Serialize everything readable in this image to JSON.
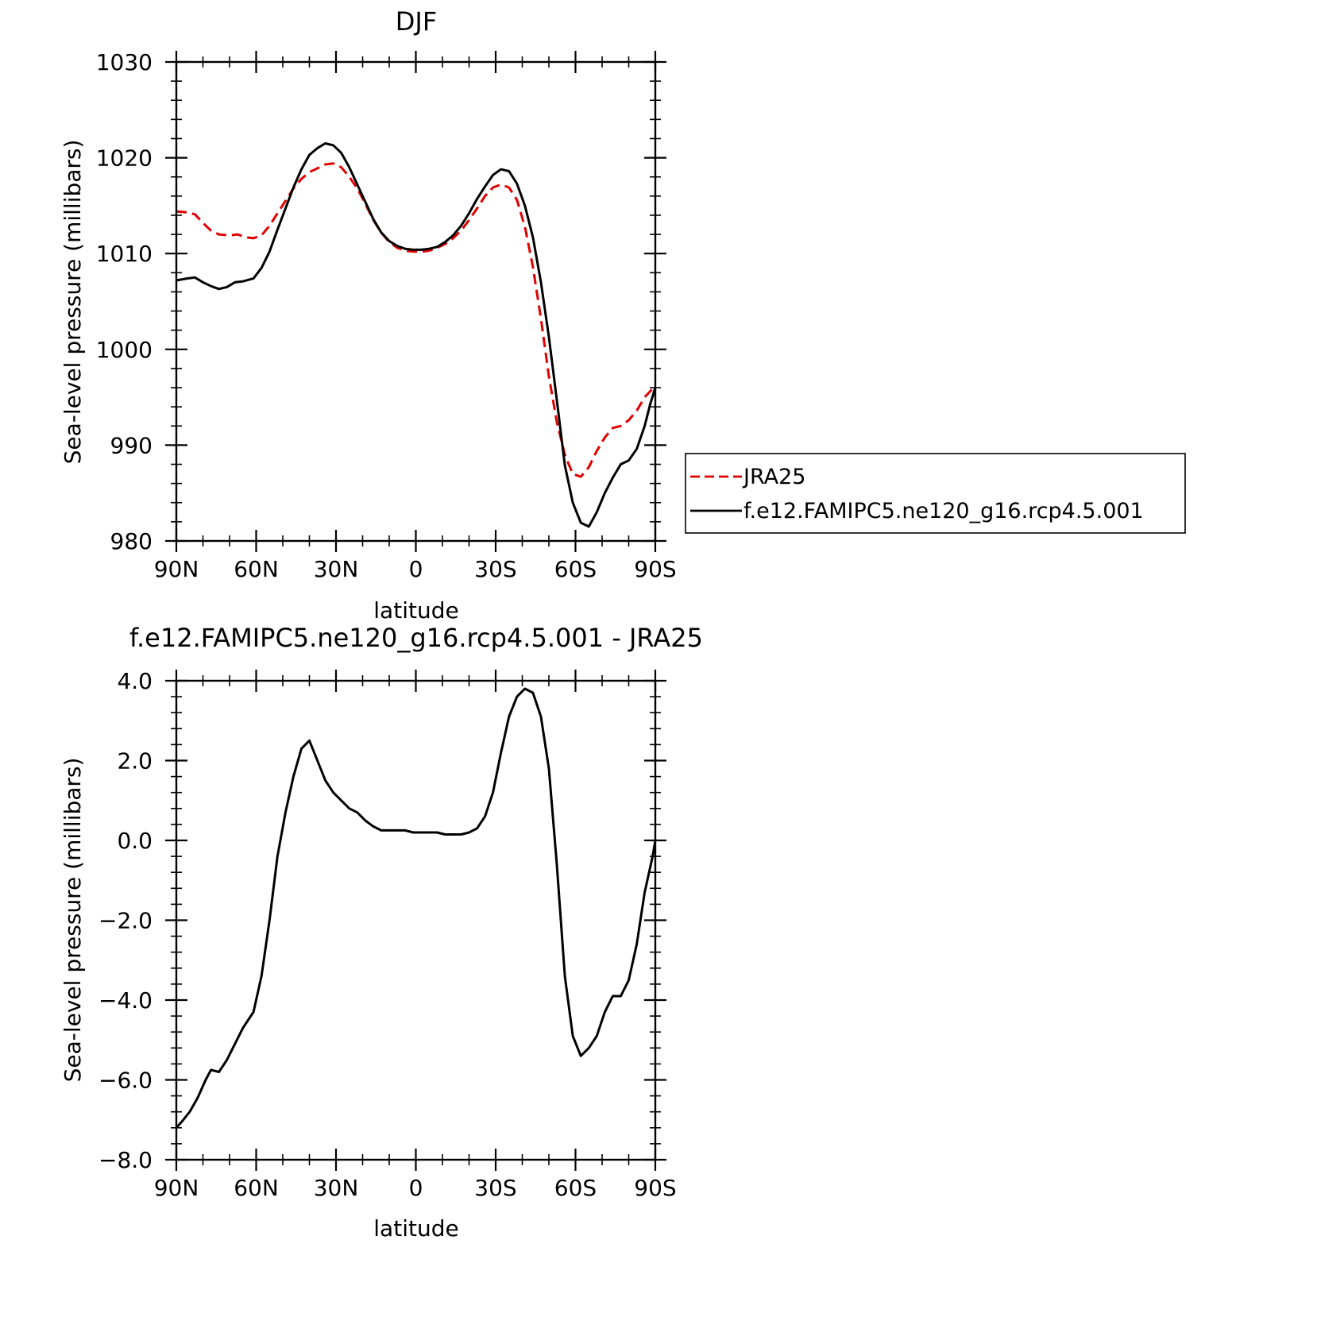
{
  "chart_data": [
    {
      "type": "line",
      "title": "DJF",
      "xlabel": "latitude",
      "ylabel": "Sea-level pressure (millibars)",
      "xlim": [
        90,
        -90
      ],
      "ylim": [
        980,
        1030
      ],
      "x_ticks": [
        90,
        60,
        30,
        0,
        -30,
        -60,
        -90
      ],
      "x_tick_labels": [
        "90N",
        "60N",
        "30N",
        "0",
        "30S",
        "60S",
        "90S"
      ],
      "y_ticks": [
        980,
        990,
        1000,
        1010,
        1020,
        1030
      ],
      "y_tick_labels": [
        "980",
        "990",
        "1000",
        "1010",
        "1020",
        "1030"
      ],
      "legend_position": "right",
      "series": [
        {
          "name": "JRA25",
          "color": "#e00000",
          "dash": true,
          "x": [
            90,
            86,
            83,
            80,
            77,
            74,
            70,
            67,
            64,
            61,
            58,
            55,
            52,
            49,
            46,
            43,
            40,
            37,
            34,
            31,
            28,
            25,
            22,
            19,
            16,
            13,
            10,
            7,
            4,
            1,
            -2,
            -5,
            -8,
            -11,
            -14,
            -17,
            -20,
            -23,
            -26,
            -29,
            -32,
            -35,
            -38,
            -41,
            -44,
            -47,
            -50,
            -53,
            -56,
            -59,
            -62,
            -65,
            -68,
            -71,
            -74,
            -77,
            -80,
            -83,
            -86,
            -90
          ],
          "values": [
            1014.4,
            1014.3,
            1014.1,
            1013.2,
            1012.4,
            1012.0,
            1011.9,
            1012.0,
            1011.7,
            1011.6,
            1011.9,
            1012.9,
            1014.2,
            1015.5,
            1016.8,
            1017.8,
            1018.5,
            1018.9,
            1019.3,
            1019.4,
            1019.0,
            1018.0,
            1016.8,
            1015.2,
            1013.5,
            1012.2,
            1011.2,
            1010.6,
            1010.3,
            1010.2,
            1010.2,
            1010.3,
            1010.6,
            1011.0,
            1011.6,
            1012.4,
            1013.5,
            1014.7,
            1016.0,
            1016.9,
            1017.2,
            1016.9,
            1015.6,
            1012.8,
            1008.6,
            1003.2,
            997.2,
            992.4,
            989.0,
            987.0,
            986.7,
            987.7,
            989.4,
            990.8,
            991.8,
            992.0,
            992.6,
            993.6,
            995.0,
            996.2
          ]
        },
        {
          "name": "f.e12.FAMIPC5.ne120_g16.rcp4.5.001",
          "color": "#000000",
          "dash": false,
          "x": [
            90,
            86,
            83,
            80,
            77,
            74,
            71,
            68,
            65,
            61,
            58,
            55,
            52,
            49,
            46,
            43,
            40,
            37,
            34,
            31,
            28,
            25,
            22,
            19,
            16,
            13,
            10,
            7,
            4,
            1,
            -2,
            -5,
            -8,
            -11,
            -14,
            -17,
            -20,
            -23,
            -26,
            -29,
            -32,
            -35,
            -38,
            -41,
            -44,
            -47,
            -50,
            -53,
            -56,
            -59,
            -62,
            -65,
            -68,
            -71,
            -74,
            -77,
            -80,
            -83,
            -86,
            -88,
            -90
          ],
          "values": [
            1007.2,
            1007.4,
            1007.5,
            1007.0,
            1006.6,
            1006.3,
            1006.5,
            1007.0,
            1007.1,
            1007.4,
            1008.5,
            1010.2,
            1012.5,
            1014.7,
            1016.9,
            1018.8,
            1020.3,
            1021.0,
            1021.5,
            1021.3,
            1020.5,
            1019.0,
            1017.2,
            1015.4,
            1013.6,
            1012.2,
            1011.3,
            1010.8,
            1010.5,
            1010.4,
            1010.4,
            1010.5,
            1010.7,
            1011.2,
            1011.9,
            1012.9,
            1014.2,
            1015.7,
            1017.0,
            1018.2,
            1018.8,
            1018.6,
            1017.3,
            1015.0,
            1011.7,
            1007.0,
            1001.3,
            994.7,
            987.9,
            984.0,
            981.9,
            981.5,
            983.0,
            985.0,
            986.6,
            988.0,
            988.4,
            989.6,
            992.0,
            994.2,
            996.0
          ]
        }
      ]
    },
    {
      "type": "line",
      "title": "f.e12.FAMIPC5.ne120_g16.rcp4.5.001 - JRA25",
      "xlabel": "latitude",
      "ylabel": "Sea-level pressure (millibars)",
      "xlim": [
        90,
        -90
      ],
      "ylim": [
        -8,
        4
      ],
      "x_ticks": [
        90,
        60,
        30,
        0,
        -30,
        -60,
        -90
      ],
      "x_tick_labels": [
        "90N",
        "60N",
        "30N",
        "0",
        "30S",
        "60S",
        "90S"
      ],
      "y_ticks": [
        -8,
        -6,
        -4,
        -2,
        0,
        2,
        4
      ],
      "y_tick_labels": [
        "−8.0",
        "−6.0",
        "−4.0",
        "−2.0",
        "0.0",
        "2.0",
        "4.0"
      ],
      "series": [
        {
          "color": "#000000",
          "dash": false,
          "x": [
            90,
            88,
            85,
            82,
            79,
            77,
            74,
            71,
            68,
            65,
            61,
            58,
            55,
            52,
            49,
            46,
            43,
            40,
            37,
            34,
            31,
            28,
            25,
            22,
            19,
            16,
            13,
            10,
            7,
            4,
            1,
            -2,
            -5,
            -8,
            -11,
            -14,
            -17,
            -20,
            -23,
            -26,
            -29,
            -32,
            -35,
            -38,
            -41,
            -44,
            -47,
            -50,
            -53,
            -56,
            -59,
            -62,
            -65,
            -68,
            -71,
            -74,
            -77,
            -80,
            -83,
            -86,
            -89,
            -90
          ],
          "values": [
            -7.2,
            -7.05,
            -6.8,
            -6.45,
            -6.0,
            -5.75,
            -5.8,
            -5.5,
            -5.1,
            -4.7,
            -4.3,
            -3.4,
            -2.0,
            -0.4,
            0.7,
            1.6,
            2.3,
            2.5,
            2.0,
            1.5,
            1.2,
            1.0,
            0.8,
            0.7,
            0.5,
            0.35,
            0.25,
            0.25,
            0.25,
            0.25,
            0.2,
            0.2,
            0.2,
            0.2,
            0.15,
            0.15,
            0.15,
            0.2,
            0.3,
            0.6,
            1.2,
            2.2,
            3.1,
            3.6,
            3.8,
            3.7,
            3.1,
            1.8,
            -0.6,
            -3.4,
            -4.9,
            -5.4,
            -5.2,
            -4.9,
            -4.3,
            -3.9,
            -3.9,
            -3.5,
            -2.6,
            -1.3,
            -0.4,
            0.0
          ]
        }
      ]
    }
  ]
}
